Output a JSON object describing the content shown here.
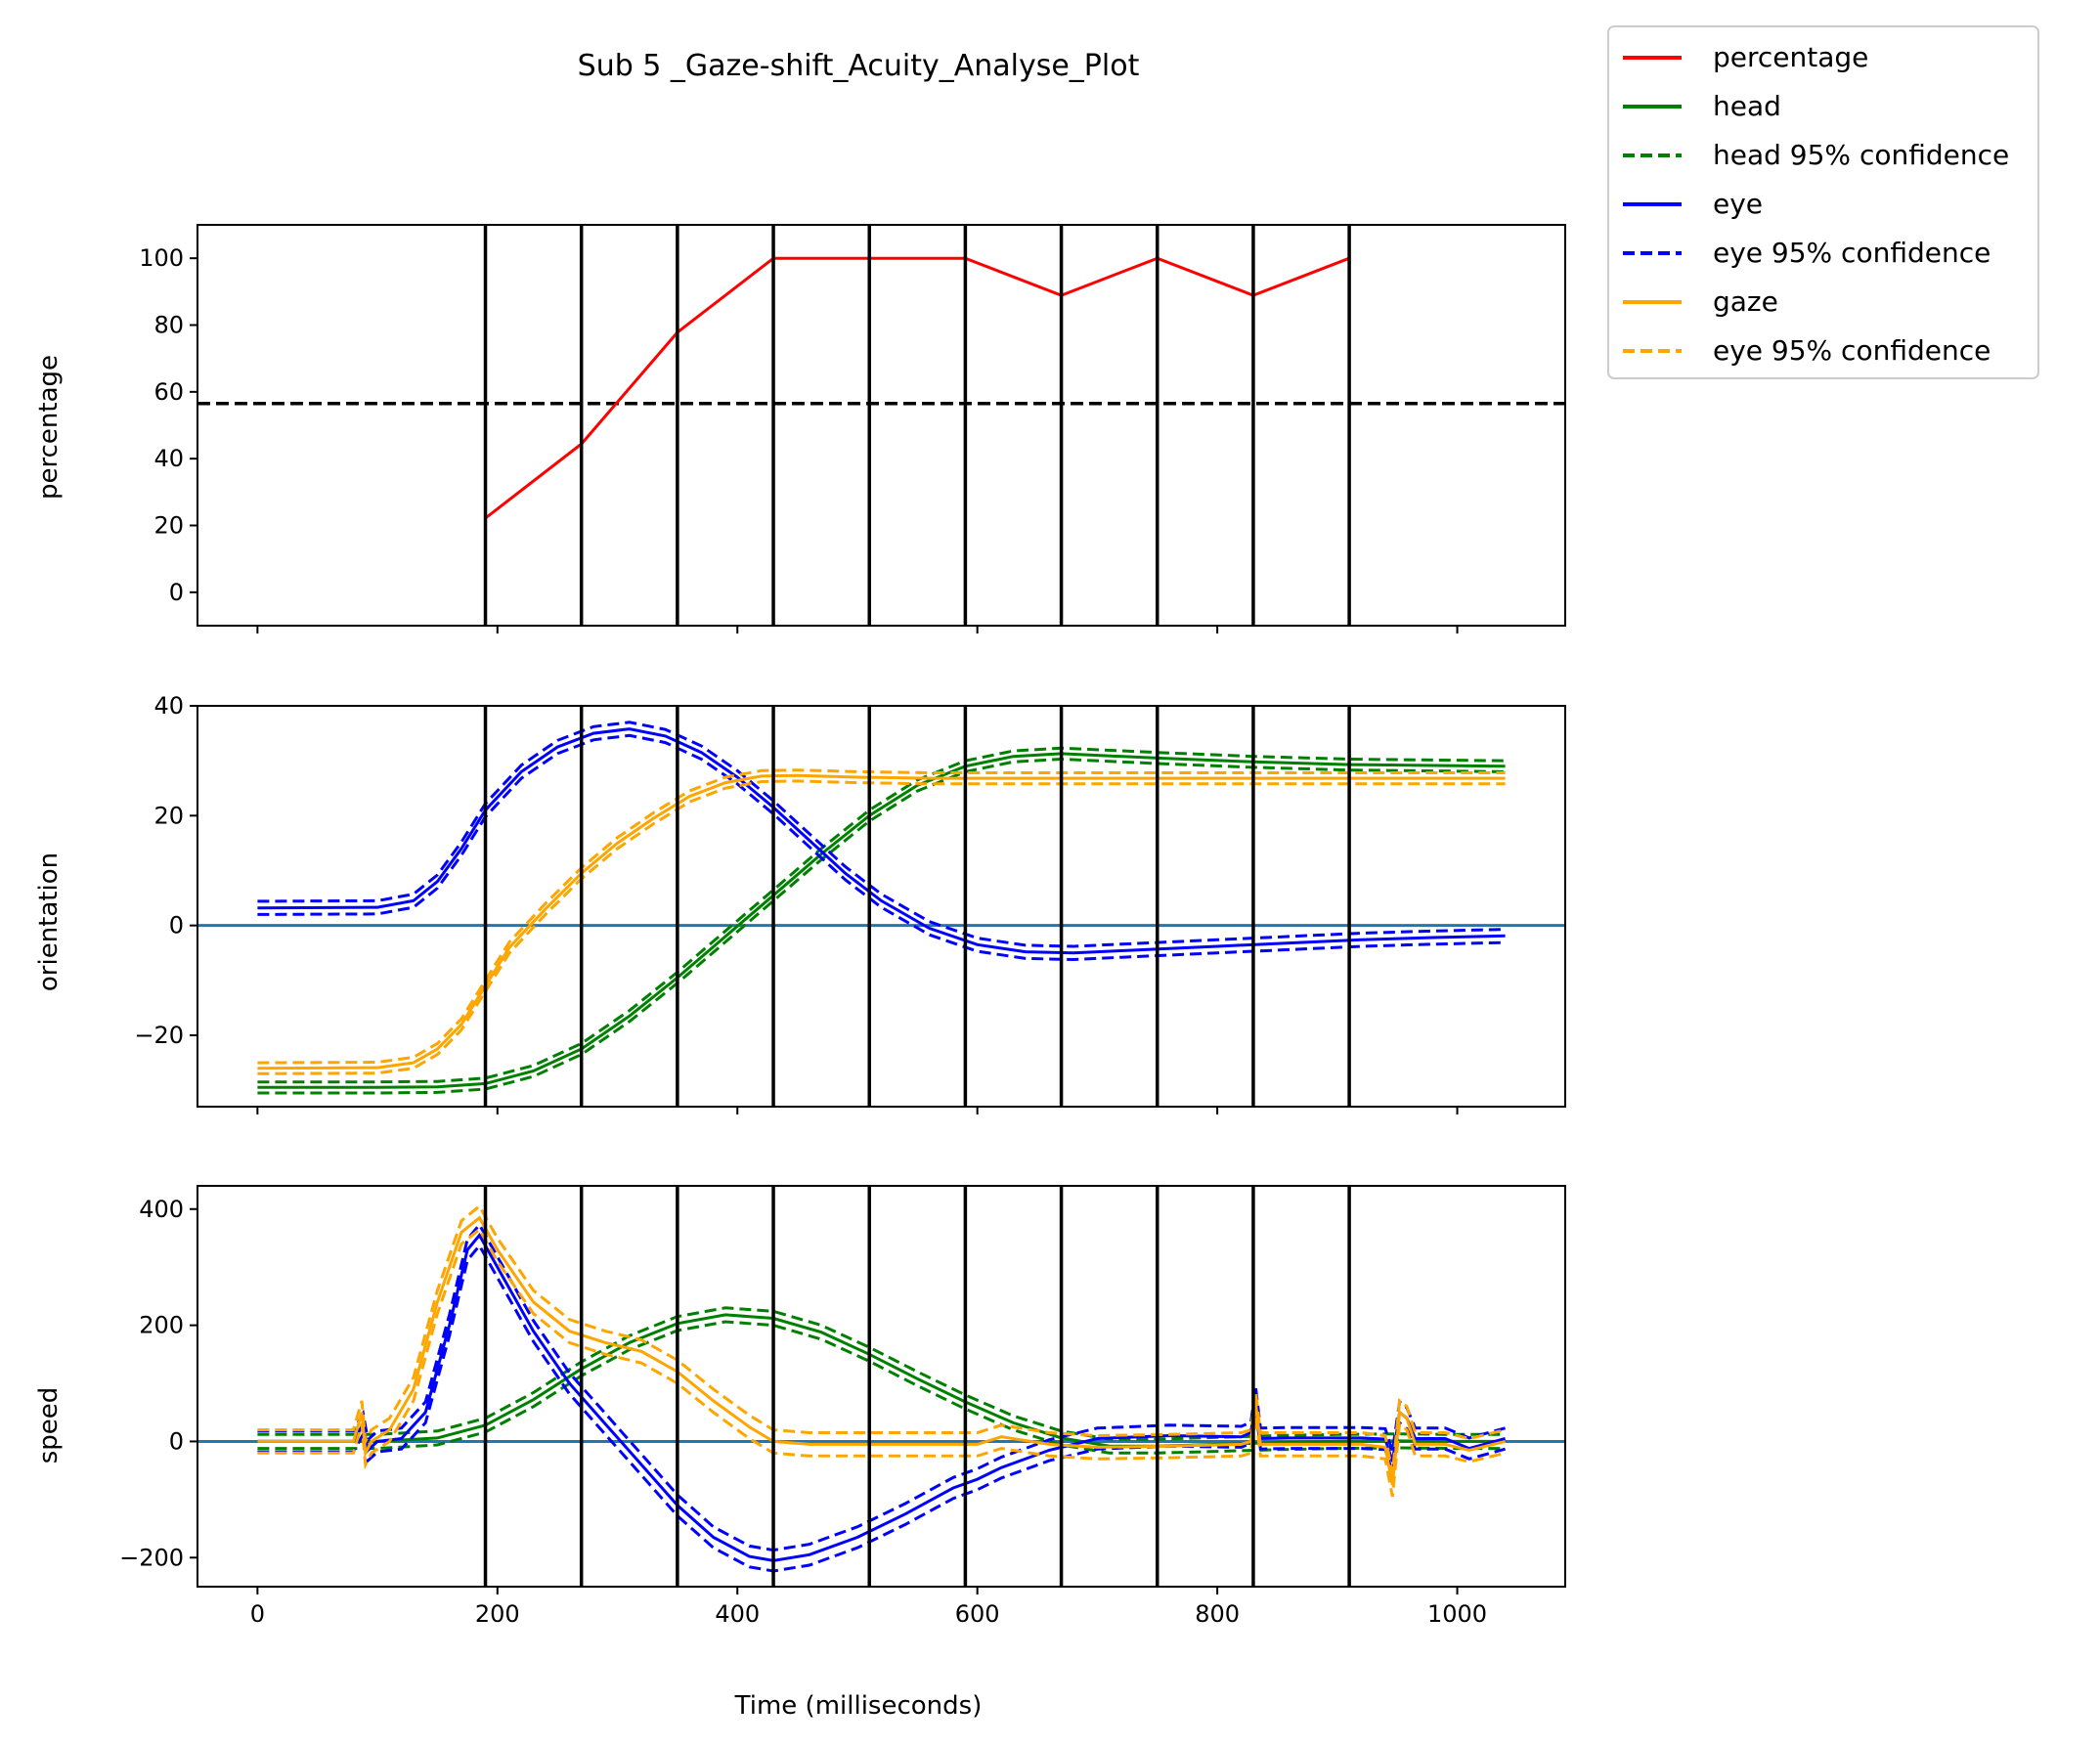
{
  "title": "Sub 5 _Gaze-shift_Acuity_Analyse_Plot",
  "xlabel": "Time (milliseconds)",
  "legend": {
    "placement": "outside-top-right",
    "entries": [
      {
        "label": "percentage",
        "color": "#ff0000",
        "dash": "solid"
      },
      {
        "label": "head",
        "color": "#008000",
        "dash": "solid"
      },
      {
        "label": "head 95% confidence",
        "color": "#008000",
        "dash": "dashed"
      },
      {
        "label": "eye",
        "color": "#0000ff",
        "dash": "solid"
      },
      {
        "label": "eye 95% confidence",
        "color": "#0000ff",
        "dash": "dashed"
      },
      {
        "label": "gaze",
        "color": "#ffa500",
        "dash": "solid"
      },
      {
        "label": "eye 95% confidence",
        "color": "#ffa500",
        "dash": "dashed"
      }
    ]
  },
  "colors": {
    "percentage": "#ff0000",
    "head": "#008000",
    "eye": "#0000ff",
    "gaze": "#ffa500",
    "zero_line": "#1f77b4",
    "threshold": "#000000",
    "vlines": "#000000"
  },
  "chart_data": [
    {
      "type": "line",
      "ylabel": "percentage",
      "xlim": [
        -50,
        1090
      ],
      "ylim": [
        -10,
        110
      ],
      "xticks": [
        0,
        200,
        400,
        600,
        800,
        1000
      ],
      "yticks": [
        0,
        20,
        40,
        60,
        80,
        100
      ],
      "show_xtick_labels": false,
      "vlines": [
        190,
        270,
        350,
        430,
        510,
        590,
        670,
        750,
        830,
        910
      ],
      "hline": {
        "y": 56.5,
        "style": "dashed",
        "color": "#000000"
      },
      "series": [
        {
          "name": "percentage",
          "color": "#ff0000",
          "x": [
            190,
            270,
            350,
            430,
            510,
            590,
            670,
            750,
            830,
            910
          ],
          "y": [
            22.2,
            44.4,
            77.8,
            100,
            100,
            100,
            88.9,
            100,
            88.9,
            100
          ]
        }
      ]
    },
    {
      "type": "line",
      "ylabel": "orientation",
      "xlim": [
        -50,
        1090
      ],
      "ylim": [
        -33,
        40
      ],
      "xticks": [
        0,
        200,
        400,
        600,
        800,
        1000
      ],
      "yticks": [
        -20,
        0,
        20,
        40
      ],
      "show_xtick_labels": false,
      "vlines": [
        190,
        270,
        350,
        430,
        510,
        590,
        670,
        750,
        830,
        910
      ],
      "hline": {
        "y": 0,
        "style": "solid",
        "color": "#1f77b4"
      },
      "series": [
        {
          "name": "head",
          "color": "#008000",
          "ci": 1.0,
          "x": [
            0,
            100,
            150,
            190,
            230,
            270,
            310,
            350,
            390,
            430,
            470,
            510,
            550,
            590,
            630,
            670,
            750,
            830,
            910,
            1040
          ],
          "y": [
            -29.5,
            -29.5,
            -29.4,
            -28.8,
            -26.5,
            -22.5,
            -16.5,
            -9.5,
            -2.0,
            5.5,
            13.0,
            20.0,
            25.5,
            29.0,
            30.8,
            31.3,
            30.5,
            29.8,
            29.3,
            29.0
          ]
        },
        {
          "name": "eye",
          "color": "#0000ff",
          "ci": 1.2,
          "x": [
            0,
            100,
            130,
            150,
            170,
            190,
            220,
            250,
            280,
            310,
            340,
            370,
            400,
            430,
            460,
            490,
            520,
            560,
            600,
            640,
            680,
            720,
            760,
            800,
            860,
            920,
            980,
            1040
          ],
          "y": [
            3.2,
            3.3,
            4.5,
            8.0,
            14.0,
            21.0,
            28.0,
            32.5,
            35.0,
            35.8,
            34.5,
            31.5,
            27.0,
            21.5,
            15.5,
            9.5,
            4.5,
            -0.5,
            -3.5,
            -4.8,
            -5.0,
            -4.6,
            -4.2,
            -3.8,
            -3.2,
            -2.6,
            -2.2,
            -1.9
          ]
        },
        {
          "name": "gaze",
          "color": "#ffa500",
          "ci": 1.0,
          "x": [
            0,
            100,
            130,
            150,
            170,
            190,
            210,
            240,
            270,
            300,
            330,
            360,
            390,
            420,
            450,
            500,
            560,
            650,
            750,
            850,
            950,
            1040
          ],
          "y": [
            -26.0,
            -25.9,
            -25.0,
            -22.5,
            -18.0,
            -11.0,
            -4.0,
            3.0,
            9.5,
            15.0,
            19.5,
            23.5,
            26.0,
            27.2,
            27.3,
            27.0,
            26.8,
            26.8,
            26.8,
            26.8,
            26.8,
            26.8
          ]
        }
      ]
    },
    {
      "type": "line",
      "ylabel": "speed",
      "xlim": [
        -50,
        1090
      ],
      "ylim": [
        -250,
        440
      ],
      "xticks": [
        0,
        200,
        400,
        600,
        800,
        1000
      ],
      "yticks": [
        -200,
        0,
        200,
        400
      ],
      "show_xtick_labels": true,
      "vlines": [
        190,
        270,
        350,
        430,
        510,
        590,
        670,
        750,
        830,
        910
      ],
      "hline": {
        "y": 0,
        "style": "solid",
        "color": "#1f77b4"
      },
      "series": [
        {
          "name": "head",
          "color": "#008000",
          "ci": 12,
          "x": [
            0,
            100,
            150,
            190,
            230,
            270,
            310,
            350,
            390,
            430,
            470,
            510,
            550,
            590,
            630,
            670,
            710,
            750,
            800,
            850,
            900,
            950,
            1000,
            1040
          ],
          "y": [
            0,
            0,
            6,
            28,
            72,
            125,
            170,
            203,
            218,
            212,
            188,
            150,
            108,
            68,
            32,
            6,
            -8,
            -8,
            -5,
            -2,
            0,
            1,
            0,
            0
          ]
        },
        {
          "name": "eye",
          "color": "#0000ff",
          "ci": 18,
          "x": [
            0,
            80,
            88,
            92,
            100,
            120,
            140,
            160,
            175,
            185,
            200,
            230,
            260,
            290,
            320,
            350,
            380,
            410,
            430,
            460,
            500,
            540,
            580,
            600,
            620,
            660,
            700,
            760,
            820,
            828,
            832,
            836,
            860,
            920,
            940,
            946,
            952,
            958,
            965,
            990,
            1010,
            1040
          ],
          "y": [
            0,
            0,
            30,
            -15,
            0,
            5,
            50,
            200,
            330,
            355,
            300,
            190,
            100,
            30,
            -40,
            -110,
            -165,
            -198,
            -205,
            -195,
            -165,
            -125,
            -80,
            -65,
            -45,
            -15,
            5,
            10,
            8,
            15,
            75,
            5,
            6,
            6,
            4,
            -35,
            50,
            40,
            5,
            5,
            -12,
            5
          ]
        },
        {
          "name": "gaze",
          "color": "#ffa500",
          "ci": 20,
          "x": [
            0,
            80,
            87,
            90,
            95,
            110,
            130,
            150,
            170,
            185,
            200,
            230,
            260,
            290,
            320,
            350,
            380,
            410,
            430,
            460,
            500,
            560,
            600,
            620,
            660,
            700,
            760,
            820,
            828,
            832,
            836,
            860,
            920,
            940,
            946,
            952,
            958,
            965,
            990,
            1010,
            1040
          ],
          "y": [
            0,
            0,
            50,
            -20,
            0,
            20,
            90,
            240,
            360,
            385,
            330,
            240,
            190,
            170,
            155,
            120,
            70,
            25,
            0,
            -5,
            -5,
            -5,
            -5,
            8,
            -5,
            -10,
            -8,
            -5,
            0,
            65,
            -5,
            -5,
            -5,
            -10,
            -75,
            50,
            40,
            -5,
            -5,
            -15,
            0
          ]
        }
      ]
    }
  ]
}
